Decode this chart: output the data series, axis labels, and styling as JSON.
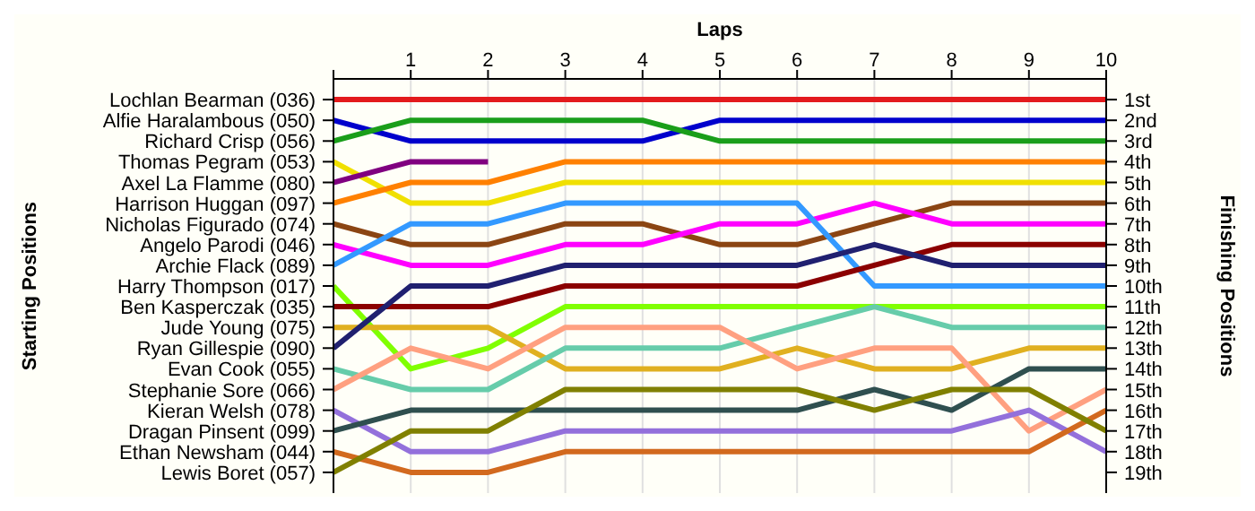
{
  "chart_data": {
    "type": "line",
    "xlabel": "Laps",
    "ylabel": "Finishing Positions",
    "annotations": [
      "Starting Positions"
    ],
    "x": [
      0,
      1,
      2,
      3,
      4,
      5,
      6,
      7,
      8,
      9,
      10
    ],
    "xlim": [
      0,
      10
    ],
    "xticks": [
      {
        "value": 0,
        "label": null
      },
      1,
      2,
      3,
      4,
      5,
      6,
      7,
      8,
      9,
      10
    ],
    "y_categories": [
      "Lochlan Bearman (036)",
      "Alfie Haralambous (050)",
      "Richard Crisp (056)",
      "Thomas Pegram (053)",
      "Axel La Flamme (080)",
      "Harrison Huggan (097)",
      "Nicholas Figurado (074)",
      "Angelo Parodi (046)",
      "Archie Flack (089)",
      "Harry Thompson (017)",
      "Ben Kasperczak (035)",
      "Jude Young (075)",
      "Ryan Gillespie (090)",
      "Evan Cook (055)",
      "Stephanie Sore (066)",
      "Kieran Welsh (078)",
      "Dragan Pinsent (099)",
      "Ethan Newsham (044)",
      "Lewis Boret (057)"
    ],
    "ylim": [
      20,
      0
    ],
    "yticks": [
      {
        "value": 1,
        "label": "1st"
      },
      {
        "value": 2,
        "label": "2nd"
      },
      {
        "value": 3,
        "label": "3rd"
      },
      {
        "value": 4,
        "label": "4th"
      },
      {
        "value": 5,
        "label": "5th"
      },
      {
        "value": 6,
        "label": "6th"
      },
      {
        "value": 7,
        "label": "7th"
      },
      {
        "value": 8,
        "label": "8th"
      },
      {
        "value": 9,
        "label": "9th"
      },
      {
        "value": 10,
        "label": "10th"
      },
      {
        "value": 11,
        "label": "11th"
      },
      {
        "value": 12,
        "label": "12th"
      },
      {
        "value": 13,
        "label": "13th"
      },
      {
        "value": 14,
        "label": "14th"
      },
      {
        "value": 15,
        "label": "15th"
      },
      {
        "value": 16,
        "label": "16th"
      },
      {
        "value": 17,
        "label": "17th"
      },
      {
        "value": 18,
        "label": "18th"
      },
      {
        "value": 19,
        "label": "19th"
      }
    ],
    "grid": "x",
    "series": [
      {
        "color": "#e31a1c",
        "values": [
          1,
          1,
          1,
          1,
          1,
          1,
          1,
          1,
          1,
          1,
          1
        ]
      },
      {
        "color": "#0000cc",
        "values": [
          2,
          3,
          3,
          3,
          3,
          2,
          2,
          2,
          2,
          2,
          2
        ]
      },
      {
        "color": "#1a9e1a",
        "values": [
          3,
          2,
          2,
          2,
          2,
          3,
          3,
          3,
          3,
          3,
          3
        ]
      },
      {
        "color": "#f0e000",
        "values": [
          4,
          6,
          6,
          5,
          5,
          5,
          5,
          5,
          5,
          5,
          5
        ]
      },
      {
        "color": "#800080",
        "values": [
          5,
          4,
          4,
          null,
          null,
          null,
          null,
          null,
          null,
          null,
          null
        ]
      },
      {
        "color": "#ff8000",
        "values": [
          6,
          5,
          5,
          4,
          4,
          4,
          4,
          4,
          4,
          4,
          4
        ]
      },
      {
        "color": "#8b4513",
        "values": [
          7,
          8,
          8,
          7,
          7,
          8,
          8,
          7,
          6,
          6,
          6
        ]
      },
      {
        "color": "#ff00ff",
        "values": [
          8,
          9,
          9,
          8,
          8,
          7,
          7,
          6,
          7,
          7,
          7
        ]
      },
      {
        "color": "#3399ff",
        "values": [
          9,
          7,
          7,
          6,
          6,
          6,
          6,
          10,
          10,
          10,
          10
        ]
      },
      {
        "color": "#80ff00",
        "values": [
          10,
          14,
          13,
          11,
          11,
          11,
          11,
          11,
          11,
          11,
          11
        ]
      },
      {
        "color": "#8b0000",
        "values": [
          11,
          11,
          11,
          10,
          10,
          10,
          10,
          9,
          8,
          8,
          8
        ]
      },
      {
        "color": "#e0b020",
        "values": [
          12,
          12,
          12,
          14,
          14,
          14,
          13,
          14,
          14,
          13,
          13
        ]
      },
      {
        "color": "#202070",
        "values": [
          13,
          10,
          10,
          9,
          9,
          9,
          9,
          8,
          9,
          9,
          9
        ]
      },
      {
        "color": "#66ccaa",
        "values": [
          14,
          15,
          15,
          13,
          13,
          13,
          12,
          11,
          12,
          12,
          12
        ]
      },
      {
        "color": "#ffa080",
        "values": [
          15,
          13,
          14,
          12,
          12,
          12,
          14,
          13,
          13,
          17,
          15
        ]
      },
      {
        "color": "#9370db",
        "values": [
          16,
          18,
          18,
          17,
          17,
          17,
          17,
          17,
          17,
          16,
          18
        ]
      },
      {
        "color": "#2f4f4f",
        "values": [
          17,
          16,
          16,
          16,
          16,
          16,
          16,
          15,
          16,
          14,
          14
        ]
      },
      {
        "color": "#d2691e",
        "values": [
          18,
          19,
          19,
          18,
          18,
          18,
          18,
          18,
          18,
          18,
          16
        ]
      },
      {
        "color": "#808000",
        "values": [
          19,
          17,
          17,
          15,
          15,
          15,
          15,
          16,
          15,
          15,
          17
        ]
      }
    ]
  }
}
